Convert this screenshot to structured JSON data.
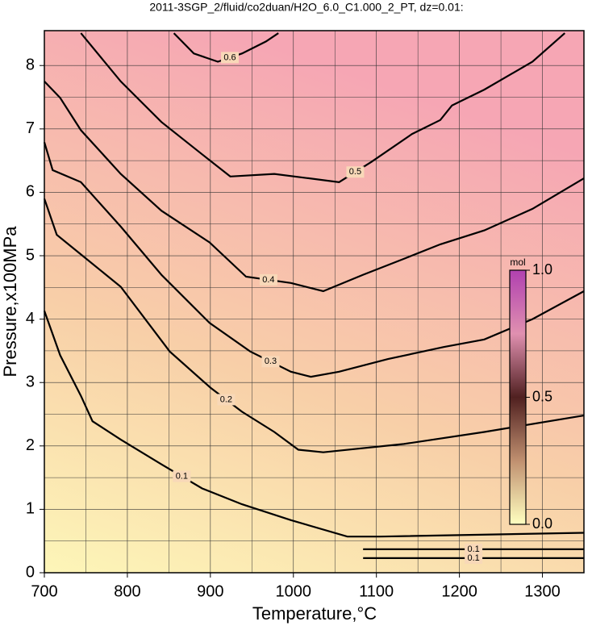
{
  "chart_data": {
    "type": "contour",
    "title": "2011-3SGP_2/fluid/co2duan/H2O_6.0_C1.000_2_PT, dz=0.01:",
    "x_label": "Temperature,°C",
    "y_label": "Pressure,x100MPa",
    "xlim": [
      700,
      1350
    ],
    "ylim": [
      0,
      8.55
    ],
    "xticks": [
      700,
      800,
      900,
      1000,
      1100,
      1200,
      1300
    ],
    "yticks": [
      0,
      1,
      2,
      3,
      4,
      5,
      6,
      7,
      8
    ],
    "xminorticks": [
      750,
      850,
      950,
      1050,
      1150,
      1250
    ],
    "yminorticks": [
      0.5,
      1.5,
      2.5,
      3.5,
      4.5,
      5.5,
      6.5,
      7.5
    ],
    "grid": true,
    "contours": [
      {
        "level": 0.1,
        "x": [
          700,
          719,
          744,
          758,
          792,
          841,
          890,
          938,
          997,
          1065,
          1104,
          1350
        ],
        "y": [
          4.13,
          3.43,
          2.79,
          2.39,
          2.1,
          1.71,
          1.33,
          1.08,
          0.83,
          0.57,
          0.57,
          0.63
        ]
      },
      {
        "level": 0.2,
        "x": [
          700,
          715,
          744,
          792,
          851,
          900,
          938,
          977,
          1006,
          1036,
          1133,
          1230,
          1350
        ],
        "y": [
          5.9,
          5.33,
          5.02,
          4.51,
          3.49,
          2.92,
          2.54,
          2.22,
          1.94,
          1.9,
          2.03,
          2.22,
          2.48
        ]
      },
      {
        "level": 0.3,
        "x": [
          700,
          710,
          744,
          792,
          841,
          899,
          948,
          997,
          1021,
          1055,
          1114,
          1181,
          1230,
          1288,
          1350
        ],
        "y": [
          6.79,
          6.35,
          6.16,
          5.46,
          4.7,
          3.94,
          3.49,
          3.17,
          3.09,
          3.17,
          3.37,
          3.56,
          3.68,
          4.0,
          4.44
        ]
      },
      {
        "level": 0.4,
        "x": [
          700,
          719,
          744,
          792,
          841,
          899,
          943,
          997,
          1036,
          1084,
          1133,
          1177,
          1230,
          1288,
          1350
        ],
        "y": [
          7.75,
          7.49,
          6.98,
          6.29,
          5.71,
          5.21,
          4.67,
          4.57,
          4.44,
          4.7,
          4.95,
          5.18,
          5.4,
          5.74,
          6.22
        ]
      },
      {
        "level": 0.5,
        "x": [
          744,
          792,
          841,
          890,
          924,
          977,
          1055,
          1094,
          1143,
          1177,
          1191,
          1230,
          1288,
          1327
        ],
        "y": [
          8.51,
          7.75,
          7.11,
          6.6,
          6.25,
          6.29,
          6.16,
          6.48,
          6.92,
          7.14,
          7.37,
          7.62,
          8.06,
          8.51
        ]
      },
      {
        "level": 0.6,
        "x": [
          856,
          880,
          909,
          938,
          967,
          982
        ],
        "y": [
          8.51,
          8.19,
          8.06,
          8.19,
          8.38,
          8.51
        ]
      },
      {
        "level": 0.1,
        "x": [
          1084,
          1350
        ],
        "y": [
          0.37,
          0.37
        ]
      },
      {
        "level": 0.1,
        "x": [
          1084,
          1350
        ],
        "y": [
          0.23,
          0.23
        ]
      }
    ],
    "colorbar": {
      "label": "mol",
      "lim": [
        0,
        1
      ],
      "ticks": [
        {
          "value": 0,
          "label": "0.0"
        },
        {
          "value": 0.5,
          "label": "0.5"
        },
        {
          "value": 1,
          "label": "1.0"
        }
      ],
      "colors": [
        "#ffffc0",
        "#c09070",
        "#502020",
        "#e090b0",
        "#b040b0"
      ]
    }
  }
}
